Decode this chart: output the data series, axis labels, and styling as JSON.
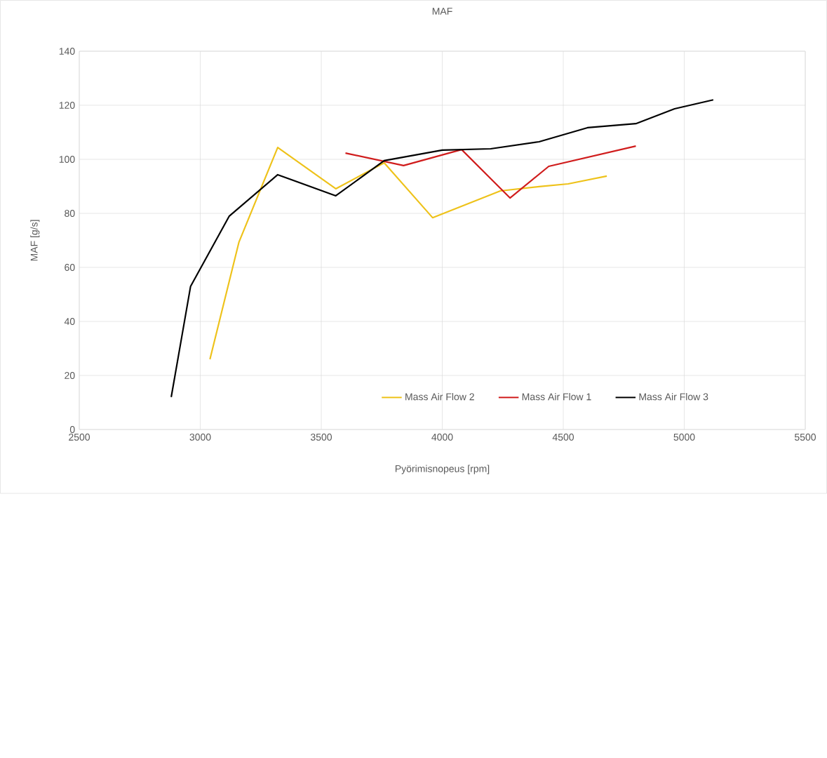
{
  "chart_data": {
    "type": "line",
    "title": "MAF",
    "xlabel": "Pyörimisnopeus [rpm]",
    "ylabel": "MAF [g/s]",
    "xlim": [
      2500,
      5500
    ],
    "xticks": [
      2500,
      3000,
      3500,
      4000,
      4500,
      5000,
      5500
    ],
    "ylim": [
      0,
      140
    ],
    "yticks": [
      0,
      20,
      40,
      60,
      80,
      100,
      120,
      140
    ],
    "grid": true,
    "legend": "bottom right",
    "marker": "none",
    "line_style": "solid",
    "series": [
      {
        "name": "Mass Air Flow 2",
        "color": "#eec21a",
        "x": [
          3040,
          3160,
          3320,
          3560,
          3760,
          3960,
          4240,
          4400,
          4520,
          4680
        ],
        "values": [
          26,
          69.4,
          104.4,
          89.1,
          98.7,
          78.4,
          88.3,
          89.9,
          90.9,
          93.8
        ]
      },
      {
        "name": "Mass Air Flow 1",
        "color": "#d01c1c",
        "x": [
          3600,
          3840,
          4080,
          4280,
          4440,
          4800
        ],
        "values": [
          102.3,
          97.7,
          103.6,
          85.7,
          97.4,
          104.9
        ]
      },
      {
        "name": "Mass Air Flow 3",
        "color": "#000000",
        "x": [
          2880,
          2960,
          3120,
          3320,
          3560,
          3760,
          4000,
          4200,
          4400,
          4600,
          4800,
          4960,
          5120
        ],
        "values": [
          12,
          53,
          79,
          94.3,
          86.5,
          99.5,
          103.4,
          103.9,
          106.5,
          111.7,
          113.2,
          118.7,
          122
        ]
      }
    ]
  }
}
